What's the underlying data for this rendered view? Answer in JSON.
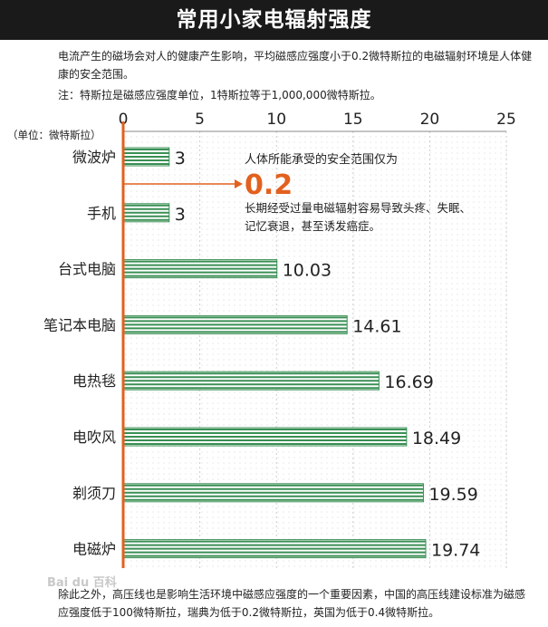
{
  "title": "常用小家电辐射强度",
  "intro": {
    "paragraph": "电流产生的磁场会对人的健康产生影响，平均磁感应强度小于0.2微特斯拉的电磁辐射环境是人体健康的安全范围。",
    "note": "注：特斯拉是磁感应强度单位，1特斯拉等于1,000,000微特斯拉。"
  },
  "chart_data": {
    "type": "bar",
    "orientation": "horizontal",
    "title": "",
    "unit_label": "（单位：微特斯拉）",
    "xlim": [
      0,
      25
    ],
    "ticks": [
      "0",
      "5",
      "10",
      "15",
      "20",
      "25"
    ],
    "grid": true,
    "categories": [
      "微波炉",
      "手机",
      "台式电脑",
      "笔记本电脑",
      "电热毯",
      "电吹风",
      "剃须刀",
      "电磁炉"
    ],
    "values": [
      3,
      3,
      10.03,
      14.61,
      16.69,
      18.49,
      19.59,
      19.74
    ],
    "value_labels": [
      "3",
      "3",
      "10.03",
      "14.61",
      "16.69",
      "18.49",
      "19.59",
      "19.74"
    ],
    "colors": {
      "bar": "#3a8f55",
      "axis": "#e2611e",
      "grid": "#cccccc",
      "callout": "#e2611e"
    }
  },
  "callout": {
    "line1": "人体所能承受的安全范围仅为",
    "value": "0.2",
    "line2": "长期经受过量电磁辐射容易导致头疼、失眠、",
    "line3": "记忆衰退，甚至诱发癌症。"
  },
  "footer": "除此之外，高压线也是影响生活环境中磁感应强度的一个重要因素，中国的高压线建设标准为磁感应强度低于100微特斯拉，瑞典为低于0.2微特斯拉，英国为低于0.4微特斯拉。",
  "watermark": "Bai du 百科"
}
